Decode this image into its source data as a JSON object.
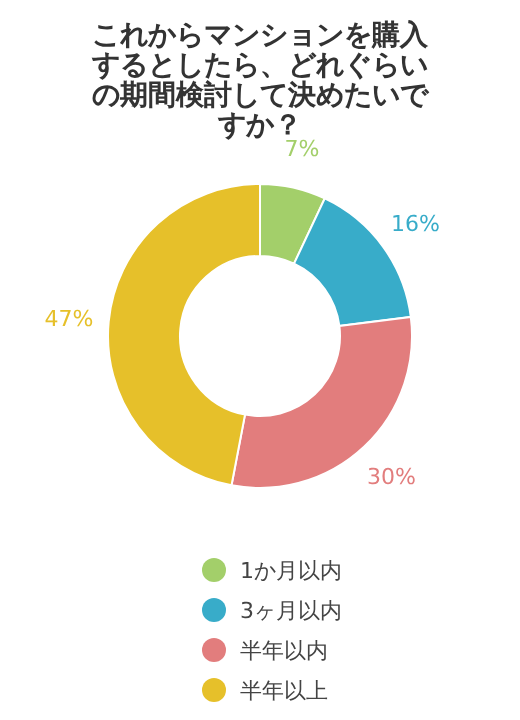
{
  "chart_data": {
    "type": "donut",
    "title": "これからマンションを購入するとしたら、どれぐらいの期間検討して決めたいですか？",
    "categories": [
      "1か月以内",
      "3ヶ月以内",
      "半年以内",
      "半年以上"
    ],
    "values": [
      7,
      16,
      30,
      47
    ],
    "colors": [
      "#a3cf6a",
      "#38acc9",
      "#e27d7d",
      "#e6c02a"
    ],
    "value_labels": [
      "7%",
      "16%",
      "30%",
      "47%"
    ],
    "legend": "bottom"
  }
}
